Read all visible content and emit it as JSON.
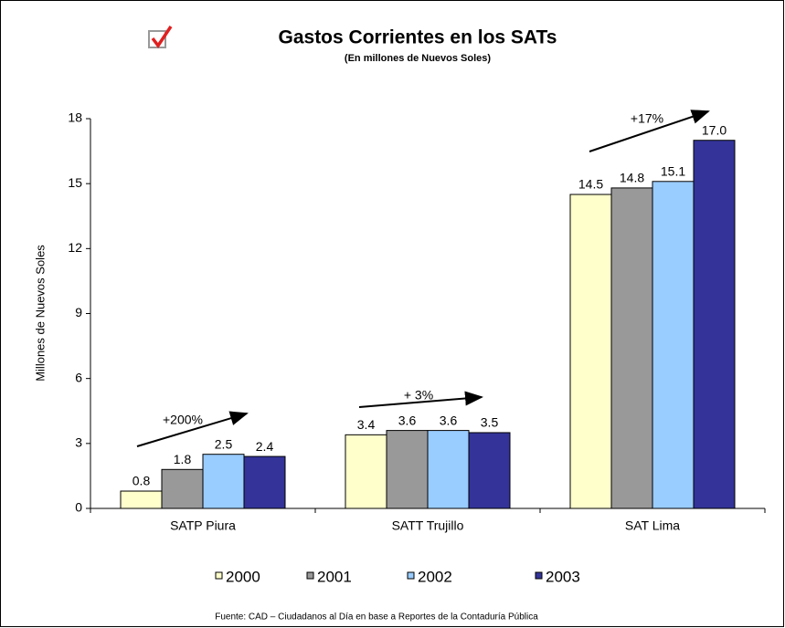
{
  "chart_data": {
    "type": "bar",
    "title": "Gastos Corrientes en los SATs",
    "subtitle": "(En millones de Nuevos Soles)",
    "y_label": "Millones de Nuevos Soles",
    "categories": [
      "SATP Piura",
      "SATT Trujillo",
      "SAT Lima"
    ],
    "series": [
      {
        "name": "2000",
        "color": "#ffffcc",
        "values": [
          0.8,
          3.4,
          14.5
        ],
        "value_labels": [
          "0.8",
          "3.4",
          "14.5"
        ]
      },
      {
        "name": "2001",
        "color": "#999999",
        "values": [
          1.8,
          3.6,
          14.8
        ],
        "value_labels": [
          "1.8",
          "3.6",
          "14.8"
        ]
      },
      {
        "name": "2002",
        "color": "#99ccff",
        "values": [
          2.5,
          3.6,
          15.1
        ],
        "value_labels": [
          "2.5",
          "3.6",
          "15.1"
        ]
      },
      {
        "name": "2003",
        "color": "#333399",
        "values": [
          2.4,
          3.5,
          17
        ],
        "value_labels": [
          "2.4",
          "3.5",
          "17.0"
        ]
      }
    ],
    "ylim": [
      0,
      18
    ],
    "yticks": [
      0,
      3,
      6,
      9,
      12,
      15,
      18
    ],
    "grid": false,
    "legend": "bottom",
    "annotations": [
      "+200%",
      "+ 3%",
      "+17%"
    ],
    "source": "Fuente: CAD – Ciudadanos al Día en base a Reportes de la Contaduría Pública"
  }
}
